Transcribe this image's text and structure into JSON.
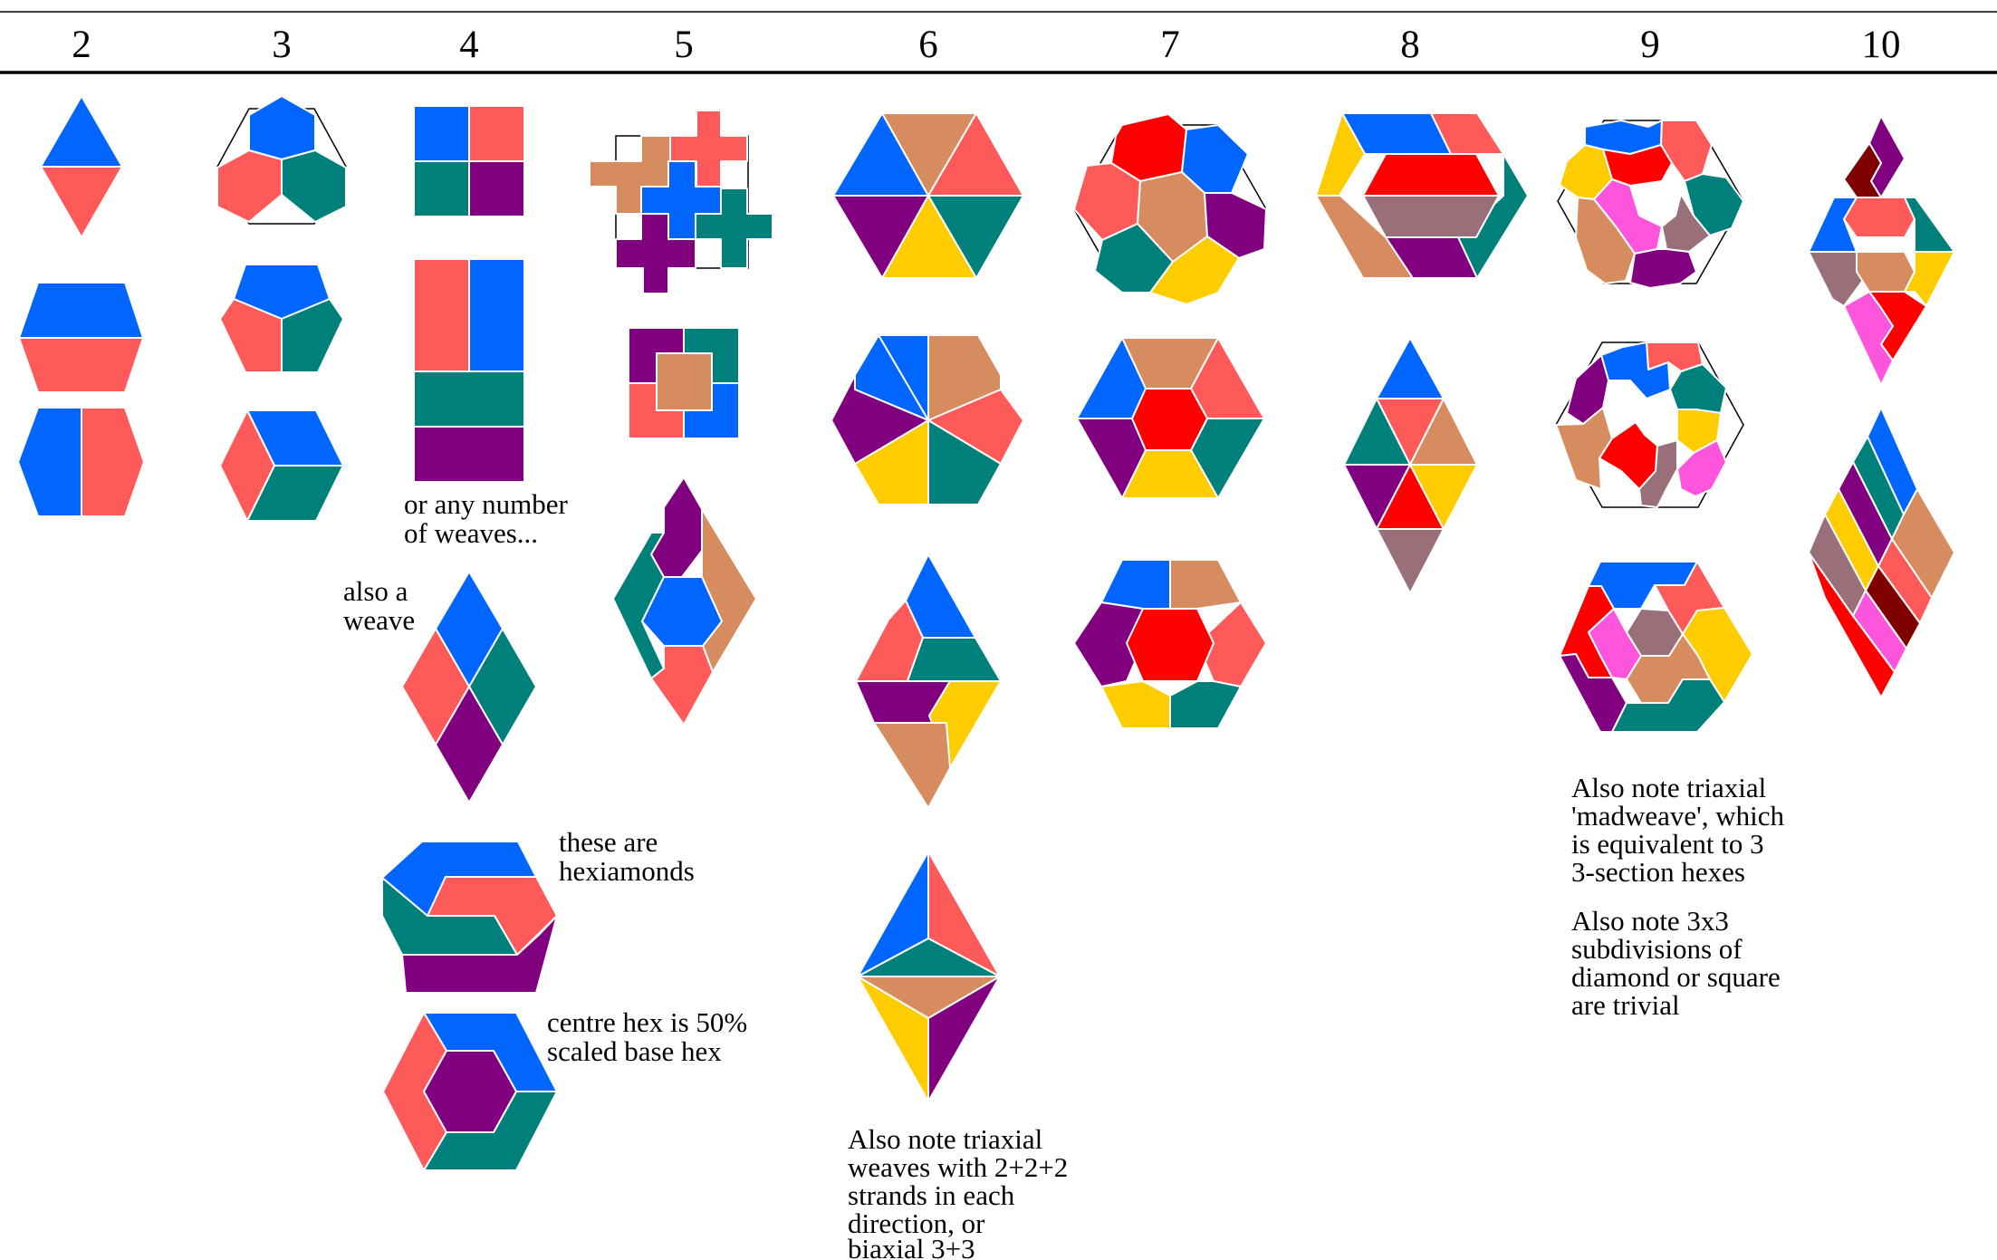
{
  "palette": {
    "blue": "#0066ff",
    "salmon": "#ff5a5a",
    "teal": "#00807a",
    "purple": "#800080",
    "tan": "#d68c5e",
    "yellow": "#ffcc00",
    "red": "#ff0000",
    "mauve": "#99707a",
    "pink": "#ff55dd",
    "maroon": "#800000",
    "white": "#ffffff",
    "outline": "#000000"
  },
  "columns": [
    {
      "label": "2"
    },
    {
      "label": "3"
    },
    {
      "label": "4"
    },
    {
      "label": "5"
    },
    {
      "label": "6"
    },
    {
      "label": "7"
    },
    {
      "label": "8"
    },
    {
      "label": "9"
    },
    {
      "label": "10"
    }
  ],
  "notes": {
    "any_number": [
      "or any number",
      "of weaves..."
    ],
    "also_weave": [
      "also a",
      "weave"
    ],
    "hexiamonds": [
      "these are",
      "hexiamonds"
    ],
    "centre_hex": [
      "centre hex is 50%",
      "scaled base hex"
    ],
    "triaxial_222": [
      "Also note triaxial",
      "weaves with 2+2+2",
      "strands in each",
      "direction, or",
      "biaxial 3+3"
    ],
    "madweave": [
      "Also note triaxial",
      "'madweave', which",
      "is equivalent to 3",
      "3-section hexes"
    ],
    "subdivisions": [
      "Also note 3x3",
      "subdivisions of",
      "diamond or square",
      "are trivial"
    ]
  }
}
